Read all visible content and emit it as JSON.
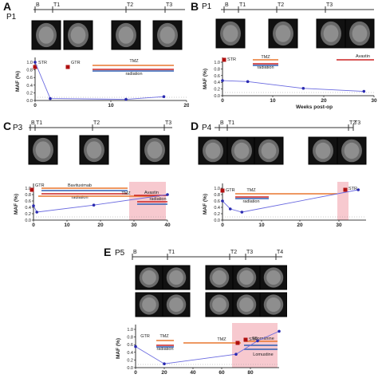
{
  "colors": {
    "tmz": "#e8772e",
    "radiation_red": "#cc2222",
    "radiation_blue": "#2f5fb3",
    "avastin": "#cc2222",
    "maf_line": "#6a6ae0",
    "surgery_marker": "#b01010",
    "shade": "#f7c9cf",
    "timeline": "#333333"
  },
  "panels": [
    {
      "letter": "A",
      "patient": "P1",
      "timepoints": [
        "B",
        "T1",
        "T2",
        "T3"
      ],
      "ylabel": "MAF (%)",
      "chart_data": {
        "type": "line",
        "x": [
          0,
          2,
          12,
          17
        ],
        "y": [
          1.0,
          0.05,
          0.03,
          0.1
        ],
        "xlim": [
          0,
          20
        ],
        "ylim": [
          0,
          1.0
        ],
        "xticks": [
          "0",
          "10",
          "20"
        ],
        "yticks": [
          "0.0",
          "0.2",
          "0.4",
          "0.6",
          "0.8",
          "1.0"
        ],
        "xlabel": ""
      },
      "events": [
        "STR",
        "GTR"
      ],
      "treatments": [
        "TMZ",
        "radiation"
      ]
    },
    {
      "letter": "B",
      "patient": "P1",
      "timepoints": [
        "B",
        "T1",
        "T2",
        "T3"
      ],
      "ylabel": "MAF (%)",
      "chart_data": {
        "type": "line",
        "x": [
          0,
          5,
          16,
          28
        ],
        "y": [
          0.45,
          0.42,
          0.22,
          0.13
        ],
        "xlim": [
          0,
          30
        ],
        "ylim": [
          0,
          1.0
        ],
        "xticks": [
          "0",
          "10",
          "20",
          "30"
        ],
        "yticks": [
          "0.0",
          "0.2",
          "0.4",
          "0.6",
          "0.8",
          "1.0"
        ],
        "xlabel": "Weeks  post-op"
      },
      "events": [
        "STR"
      ],
      "treatments": [
        "TMZ",
        "radiation",
        "Avastin"
      ]
    },
    {
      "letter": "C",
      "patient": "P3",
      "timepoints": [
        "B",
        "T1",
        "T2",
        "T3"
      ],
      "ylabel": "MAF (%)",
      "chart_data": {
        "type": "line",
        "x": [
          0,
          1,
          18,
          40
        ],
        "y": [
          0.45,
          0.25,
          0.47,
          0.8
        ],
        "xlim": [
          0,
          40
        ],
        "ylim": [
          0,
          1.0
        ],
        "xticks": [
          "0",
          "10",
          "20",
          "30",
          "40"
        ],
        "yticks": [
          "0.0",
          "0.2",
          "0.4",
          "0.6",
          "0.8",
          "1.0"
        ],
        "xlabel": ""
      },
      "events": [
        "GTR"
      ],
      "treatments": [
        "Bavituximab",
        "radiation",
        "TMZ",
        "Avastin",
        "radiation"
      ]
    },
    {
      "letter": "D",
      "patient": "P4",
      "timepoints": [
        "B",
        "T1",
        "T2",
        "T3"
      ],
      "ylabel": "MAF (%)",
      "chart_data": {
        "type": "line",
        "x": [
          0,
          2,
          5,
          35
        ],
        "y": [
          0.6,
          0.35,
          0.25,
          0.95
        ],
        "xlim": [
          0,
          37
        ],
        "ylim": [
          0,
          1.0
        ],
        "xticks": [
          "0",
          "10",
          "20",
          "30"
        ],
        "yticks": [
          "0.0",
          "0.2",
          "0.4",
          "0.6",
          "0.8",
          "1.0"
        ],
        "xlabel": ""
      },
      "events": [
        "GTR",
        "STR"
      ],
      "treatments": [
        "TMZ",
        "radiation"
      ]
    },
    {
      "letter": "E",
      "patient": "P5",
      "timepoints": [
        "B",
        "T1",
        "T2",
        "T3",
        "T4"
      ],
      "ylabel": "MAF (%)",
      "chart_data": {
        "type": "line",
        "x": [
          0,
          20,
          70,
          85,
          100
        ],
        "y": [
          0.55,
          0.1,
          0.35,
          0.7,
          0.95
        ],
        "xlim": [
          0,
          100
        ],
        "ylim": [
          0,
          1.0
        ],
        "xticks": [
          "0",
          "20",
          "40",
          "60",
          "80"
        ],
        "yticks": [
          "0.0",
          "0.2",
          "0.4",
          "0.6",
          "0.8",
          "1.0"
        ],
        "xlabel": ""
      },
      "events": [
        "GTR",
        "STR"
      ],
      "treatments": [
        "TMZ",
        "radiation",
        "TMZ",
        "Eflornithine",
        "Lomustine"
      ]
    }
  ]
}
